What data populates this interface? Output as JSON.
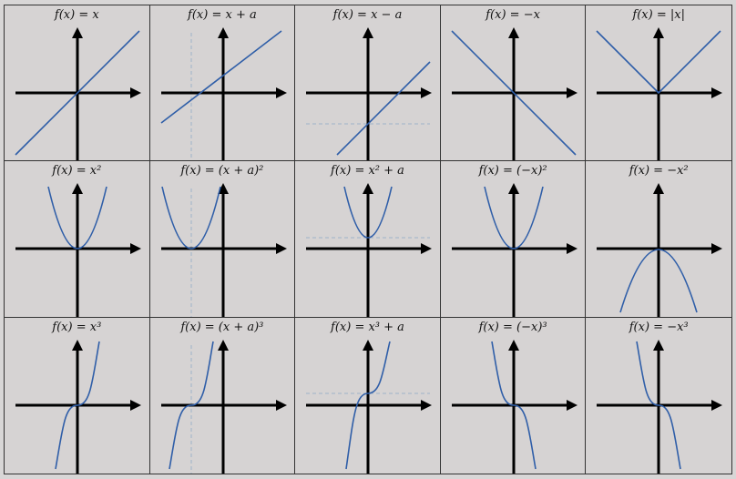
{
  "cells": [
    [
      {
        "label": "f(x) = x"
      },
      {
        "label": "f(x) = x + a"
      },
      {
        "label": "f(x) = x − a"
      },
      {
        "label": "f(x) = −x"
      },
      {
        "label": "f(x) = |x|"
      }
    ],
    [
      {
        "label": "f(x) = x²"
      },
      {
        "label": "f(x) = (x + a)²"
      },
      {
        "label": "f(x) = x² + a"
      },
      {
        "label": "f(x) = (−x)²"
      },
      {
        "label": "f(x) = −x²"
      }
    ],
    [
      {
        "label": "f(x) = x³"
      },
      {
        "label": "f(x) = (x + a)³"
      },
      {
        "label": "f(x) = x³ + a"
      },
      {
        "label": "f(x) = (−x)³"
      },
      {
        "label": "f(x) = −x³"
      }
    ]
  ],
  "colors": {
    "curve": "#2f5ea8",
    "axis": "#000000",
    "guide": "#9fb3c8",
    "background": "#d6d3d3"
  }
}
